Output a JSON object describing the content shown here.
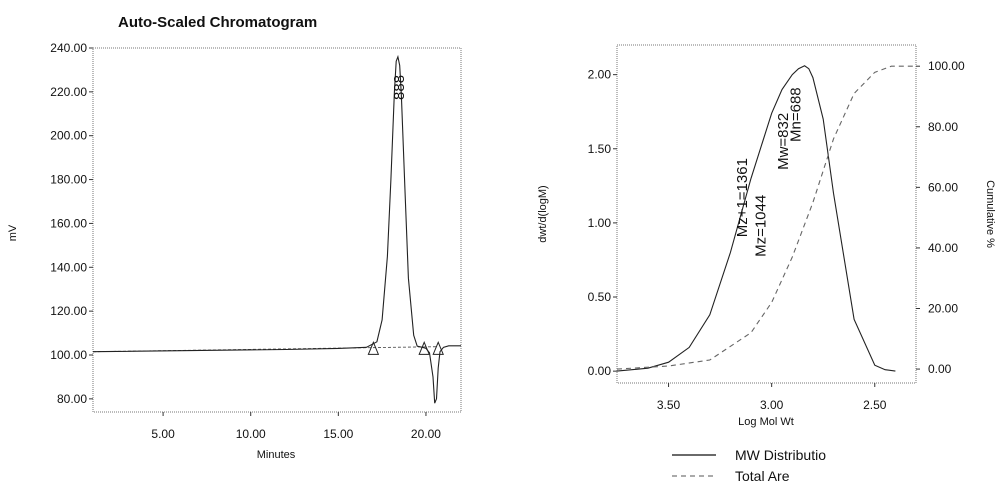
{
  "chart_data": [
    {
      "type": "line",
      "title": "Auto-Scaled Chromatogram",
      "xlabel": "Minutes",
      "ylabel": "mV",
      "xlim": [
        1,
        22
      ],
      "ylim": [
        74,
        240
      ],
      "xticks": [
        "5.00",
        "10.00",
        "15.00",
        "20.00"
      ],
      "yticks": [
        "240.00",
        "220.00",
        "200.00",
        "180.00",
        "160.00",
        "140.00",
        "120.00",
        "100.00",
        "80.00"
      ],
      "grid": false,
      "series": [
        {
          "x": [
            1.0,
            12.0,
            15.0,
            16.6,
            17.2,
            17.5,
            17.8,
            18.0,
            18.2,
            18.3,
            18.4,
            18.5,
            18.6,
            18.8,
            19.0,
            19.3,
            19.5,
            19.8,
            20.0,
            20.2,
            20.4,
            20.5,
            20.6,
            20.7,
            20.8,
            21.0,
            21.3,
            22.0
          ],
          "values": [
            101.5,
            102.5,
            103.0,
            103.5,
            106,
            116,
            145,
            180,
            220,
            234,
            236,
            232,
            218,
            176,
            135,
            109,
            104,
            103.5,
            103,
            101,
            90,
            78,
            80,
            94,
            101.5,
            103.5,
            104.2,
            104.2
          ]
        }
      ],
      "peak_labels": [
        {
          "label": "888",
          "x": 18.45,
          "y": 222
        }
      ],
      "baseline": {
        "x": [
          1.0,
          20.6
        ],
        "values": [
          101.5,
          103.8
        ]
      },
      "peak_markers": [
        {
          "x": 17.0,
          "y": 103.5
        },
        {
          "x": 19.9,
          "y": 103.5
        },
        {
          "x": 20.7,
          "y": 103.5
        }
      ]
    },
    {
      "type": "line",
      "xlabel": "Log Mol Wt",
      "ylabel": "dwt/d(logM)",
      "y2label": "Cumulative %",
      "xlim": [
        3.75,
        2.3
      ],
      "ylim": [
        -0.08,
        2.2
      ],
      "y2lim": [
        -4.6,
        107
      ],
      "x_reversed": true,
      "xticks": [
        "3.50",
        "3.00",
        "2.50"
      ],
      "yticks": [
        "2.00",
        "1.50",
        "1.00",
        "0.50",
        "0.00"
      ],
      "y2ticks": [
        "100.00",
        "80.00",
        "60.00",
        "40.00",
        "20.00",
        "0.00"
      ],
      "legend_position": "bottom",
      "series": [
        {
          "name": "MW Distributio",
          "x": [
            3.75,
            3.6,
            3.5,
            3.4,
            3.3,
            3.2,
            3.1,
            3.0,
            2.95,
            2.9,
            2.87,
            2.84,
            2.82,
            2.8,
            2.75,
            2.7,
            2.6,
            2.5,
            2.45,
            2.4
          ],
          "values": [
            0.0,
            0.02,
            0.06,
            0.16,
            0.38,
            0.8,
            1.3,
            1.74,
            1.9,
            2.0,
            2.04,
            2.06,
            2.04,
            1.98,
            1.7,
            1.2,
            0.35,
            0.04,
            0.01,
            0.0
          ]
        },
        {
          "name": "Total Are",
          "axis": "right",
          "x": [
            3.75,
            3.5,
            3.3,
            3.1,
            3.0,
            2.9,
            2.8,
            2.7,
            2.6,
            2.5,
            2.42,
            2.35,
            2.3
          ],
          "values": [
            0,
            1,
            3,
            12,
            22,
            37,
            55,
            76,
            91,
            98,
            100,
            100,
            100
          ]
        }
      ],
      "annotations": [
        {
          "text": "Mz+1=1361",
          "x": 3.12,
          "y": 1.17
        },
        {
          "text": "Mz=1044",
          "x": 3.03,
          "y": 0.98
        },
        {
          "text": "Mw=832",
          "x": 2.92,
          "y": 1.55
        },
        {
          "text": "Mn=688",
          "x": 2.86,
          "y": 1.73
        }
      ]
    }
  ]
}
